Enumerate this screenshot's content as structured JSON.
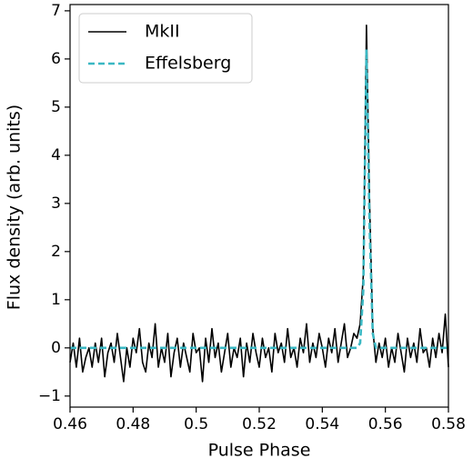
{
  "chart_data": {
    "type": "line",
    "xlabel": "Pulse Phase",
    "ylabel": "Flux density (arb. units)",
    "x": [
      0.46,
      0.461,
      0.462,
      0.463,
      0.464,
      0.465,
      0.466,
      0.467,
      0.468,
      0.469,
      0.47,
      0.471,
      0.472,
      0.473,
      0.474,
      0.475,
      0.476,
      0.477,
      0.478,
      0.479,
      0.48,
      0.481,
      0.482,
      0.483,
      0.484,
      0.485,
      0.486,
      0.487,
      0.488,
      0.489,
      0.49,
      0.491,
      0.492,
      0.493,
      0.494,
      0.495,
      0.496,
      0.497,
      0.498,
      0.499,
      0.5,
      0.501,
      0.502,
      0.503,
      0.504,
      0.505,
      0.506,
      0.507,
      0.508,
      0.509,
      0.51,
      0.511,
      0.512,
      0.513,
      0.514,
      0.515,
      0.516,
      0.517,
      0.518,
      0.519,
      0.52,
      0.521,
      0.522,
      0.523,
      0.524,
      0.525,
      0.526,
      0.527,
      0.528,
      0.529,
      0.53,
      0.531,
      0.532,
      0.533,
      0.534,
      0.535,
      0.536,
      0.537,
      0.538,
      0.539,
      0.54,
      0.541,
      0.542,
      0.543,
      0.544,
      0.545,
      0.546,
      0.547,
      0.548,
      0.549,
      0.55,
      0.551,
      0.552,
      0.553,
      0.554,
      0.555,
      0.556,
      0.557,
      0.558,
      0.559,
      0.56,
      0.561,
      0.562,
      0.563,
      0.564,
      0.565,
      0.566,
      0.567,
      0.568,
      0.569,
      0.57,
      0.571,
      0.572,
      0.573,
      0.574,
      0.575,
      0.576,
      0.577,
      0.578,
      0.579,
      0.58
    ],
    "series": [
      {
        "name": "MkII",
        "color": "#000000",
        "dashed": false,
        "values": [
          -0.3,
          0.1,
          -0.4,
          0.2,
          -0.5,
          -0.2,
          0.0,
          -0.4,
          0.1,
          -0.3,
          0.2,
          -0.6,
          -0.1,
          0.1,
          -0.3,
          0.3,
          -0.2,
          -0.7,
          0.0,
          -0.4,
          0.2,
          -0.1,
          0.4,
          -0.3,
          -0.5,
          0.1,
          -0.2,
          0.5,
          -0.4,
          0.0,
          -0.3,
          0.3,
          -0.6,
          -0.1,
          0.2,
          -0.4,
          0.1,
          -0.2,
          -0.5,
          0.3,
          -0.1,
          0.0,
          -0.7,
          0.2,
          -0.3,
          0.4,
          -0.2,
          0.1,
          -0.5,
          -0.1,
          0.3,
          -0.4,
          0.0,
          -0.2,
          0.2,
          -0.6,
          0.1,
          -0.3,
          0.3,
          -0.1,
          -0.4,
          0.2,
          -0.2,
          0.0,
          -0.5,
          0.3,
          -0.1,
          0.1,
          -0.3,
          0.4,
          -0.2,
          0.0,
          -0.4,
          0.2,
          -0.1,
          0.5,
          -0.3,
          0.1,
          -0.2,
          0.3,
          0.0,
          -0.4,
          0.2,
          -0.1,
          0.4,
          -0.3,
          0.1,
          0.5,
          -0.2,
          0.0,
          0.3,
          0.2,
          0.5,
          1.5,
          6.7,
          3.0,
          0.4,
          -0.3,
          0.1,
          -0.2,
          0.2,
          -0.4,
          0.0,
          -0.3,
          0.3,
          -0.1,
          -0.5,
          0.2,
          -0.2,
          0.1,
          -0.3,
          0.4,
          -0.1,
          0.0,
          -0.4,
          0.2,
          -0.2,
          0.3,
          -0.1,
          0.7,
          -0.4
        ]
      },
      {
        "name": "Effelsberg",
        "color": "#3bb8c3",
        "dashed": true,
        "values": [
          0,
          0,
          0,
          0,
          0,
          0,
          0,
          0,
          0,
          0,
          0,
          0,
          0,
          0,
          0,
          0,
          0,
          0,
          0,
          0,
          0,
          0,
          0,
          0,
          0,
          0,
          0,
          0,
          0,
          0,
          0,
          0,
          0,
          0,
          0,
          0,
          0,
          0,
          0,
          0,
          0,
          0,
          0,
          0,
          0,
          0,
          0,
          0,
          0,
          0,
          0,
          0,
          0,
          0,
          0,
          0,
          0,
          0,
          0,
          0,
          0,
          0,
          0,
          0,
          0,
          0,
          0,
          0,
          0,
          0,
          0,
          0,
          0,
          0,
          0,
          0,
          0,
          0,
          0,
          0,
          0,
          0,
          0,
          0,
          0,
          0,
          0,
          0,
          0,
          0,
          0,
          0,
          0.1,
          1.2,
          6.2,
          2.5,
          0.3,
          0,
          0,
          0,
          0,
          0,
          0,
          0,
          0,
          0,
          0,
          0,
          0,
          0,
          0,
          0,
          0,
          0,
          0,
          0,
          0,
          0,
          0,
          0,
          0
        ]
      }
    ],
    "xlim": [
      0.46,
      0.58
    ],
    "xticks": [
      0.46,
      0.48,
      0.5,
      0.52,
      0.54,
      0.56,
      0.58
    ],
    "ylim": [
      -1.23,
      7.13
    ],
    "yticks": [
      {
        "value": -1,
        "label": "−1"
      },
      0,
      1,
      2,
      3,
      4,
      5,
      6,
      7
    ],
    "legend": "upper left"
  }
}
